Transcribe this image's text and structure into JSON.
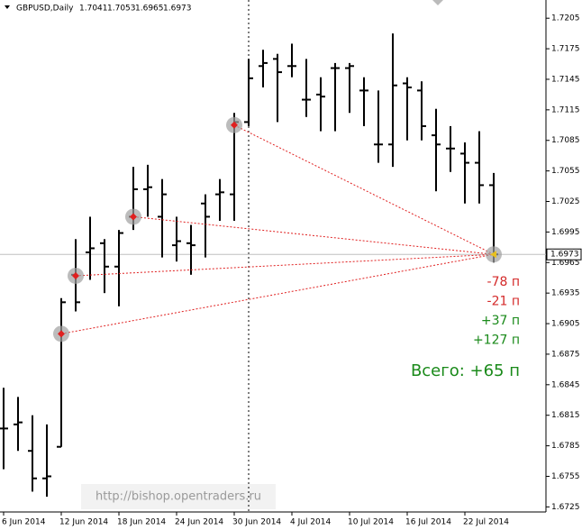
{
  "chart_data": {
    "type": "ohlc",
    "symbol": "GBPUSD,Daily",
    "color": "#000000",
    "categories": [
      "6 Jun 2014",
      null,
      null,
      null,
      "12 Jun 2014",
      null,
      null,
      null,
      "18 Jun 2014",
      null,
      null,
      null,
      "24 Jun 2014",
      null,
      null,
      null,
      "30 Jun 2014",
      null,
      null,
      null,
      "4 Jul 2014",
      null,
      null,
      null,
      "10 Jul 2014",
      null,
      null,
      null,
      "16 Jul 2014",
      null,
      null,
      null,
      "22 Jul 2014",
      null,
      null
    ],
    "open": [
      1.6802,
      1.6806,
      1.678,
      1.6753,
      1.6784,
      1.6953,
      1.6975,
      1.6984,
      1.6961,
      1.701,
      1.7037,
      1.701,
      1.6982,
      1.6984,
      1.7023,
      1.7032,
      1.7032,
      1.7103,
      1.7158,
      1.7165,
      1.7158,
      1.7125,
      1.713,
      1.7156,
      1.7156,
      1.7134,
      1.7081,
      1.7081,
      1.7141,
      1.7134,
      1.709,
      1.7077,
      1.7072,
      1.7063,
      1.7041
    ],
    "high": [
      1.6842,
      1.6833,
      1.6815,
      1.6806,
      1.693,
      1.6988,
      1.701,
      1.6988,
      1.6997,
      1.7059,
      1.7061,
      1.7047,
      1.701,
      1.7002,
      1.7032,
      1.7047,
      1.7112,
      1.7165,
      1.7174,
      1.717,
      1.718,
      1.7165,
      1.7147,
      1.7161,
      1.7161,
      1.7147,
      1.7134,
      1.719,
      1.7147,
      1.7143,
      1.7116,
      1.7099,
      1.7083,
      1.7094,
      1.7053
    ],
    "low": [
      1.6762,
      1.678,
      1.674,
      1.6735,
      1.6784,
      1.6917,
      1.6948,
      1.6935,
      1.6922,
      1.6997,
      1.701,
      1.697,
      1.6966,
      1.6953,
      1.697,
      1.7006,
      1.7006,
      1.7099,
      1.7137,
      1.7103,
      1.7147,
      1.7108,
      1.7094,
      1.7094,
      1.7112,
      1.7099,
      1.7063,
      1.7059,
      1.7085,
      1.7085,
      1.7035,
      1.7054,
      1.7023,
      1.7023,
      1.6965
    ],
    "close": [
      1.6802,
      1.6808,
      1.6753,
      1.6755,
      1.6926,
      1.6926,
      1.6979,
      1.6961,
      1.6994,
      1.7037,
      1.7039,
      1.7032,
      1.6986,
      1.6982,
      1.701,
      1.7034,
      1.7103,
      1.7146,
      1.7161,
      1.7152,
      1.7158,
      1.7125,
      1.7128,
      1.7156,
      1.7158,
      1.7134,
      1.7081,
      1.7139,
      1.7137,
      1.7099,
      1.7081,
      1.7077,
      1.7063,
      1.7041,
      1.6973
    ],
    "ylim": [
      1.672,
      1.7222
    ],
    "yticks": [
      1.7205,
      1.7175,
      1.7145,
      1.7115,
      1.7085,
      1.7055,
      1.7025,
      1.6995,
      1.6965,
      1.6935,
      1.6905,
      1.6875,
      1.6845,
      1.6815,
      1.6785,
      1.6755,
      1.6725
    ],
    "trades": [
      {
        "bar": 4,
        "price": 1.6895,
        "label": "-78 п",
        "color": "#d42a2a"
      },
      {
        "bar": 5,
        "price": 1.6952,
        "label": "-21 п",
        "color": "#d42a2a"
      },
      {
        "bar": 9,
        "price": 1.701,
        "label": "+37 п",
        "color": "#1a8a1a"
      },
      {
        "bar": 16,
        "price": 1.71,
        "label": "+127 п",
        "color": "#1a8a1a"
      }
    ],
    "total_label": "Всего: +65 п",
    "total_color": "#1a8a1a",
    "watermark": "http://bishop.opentraders.ru"
  }
}
